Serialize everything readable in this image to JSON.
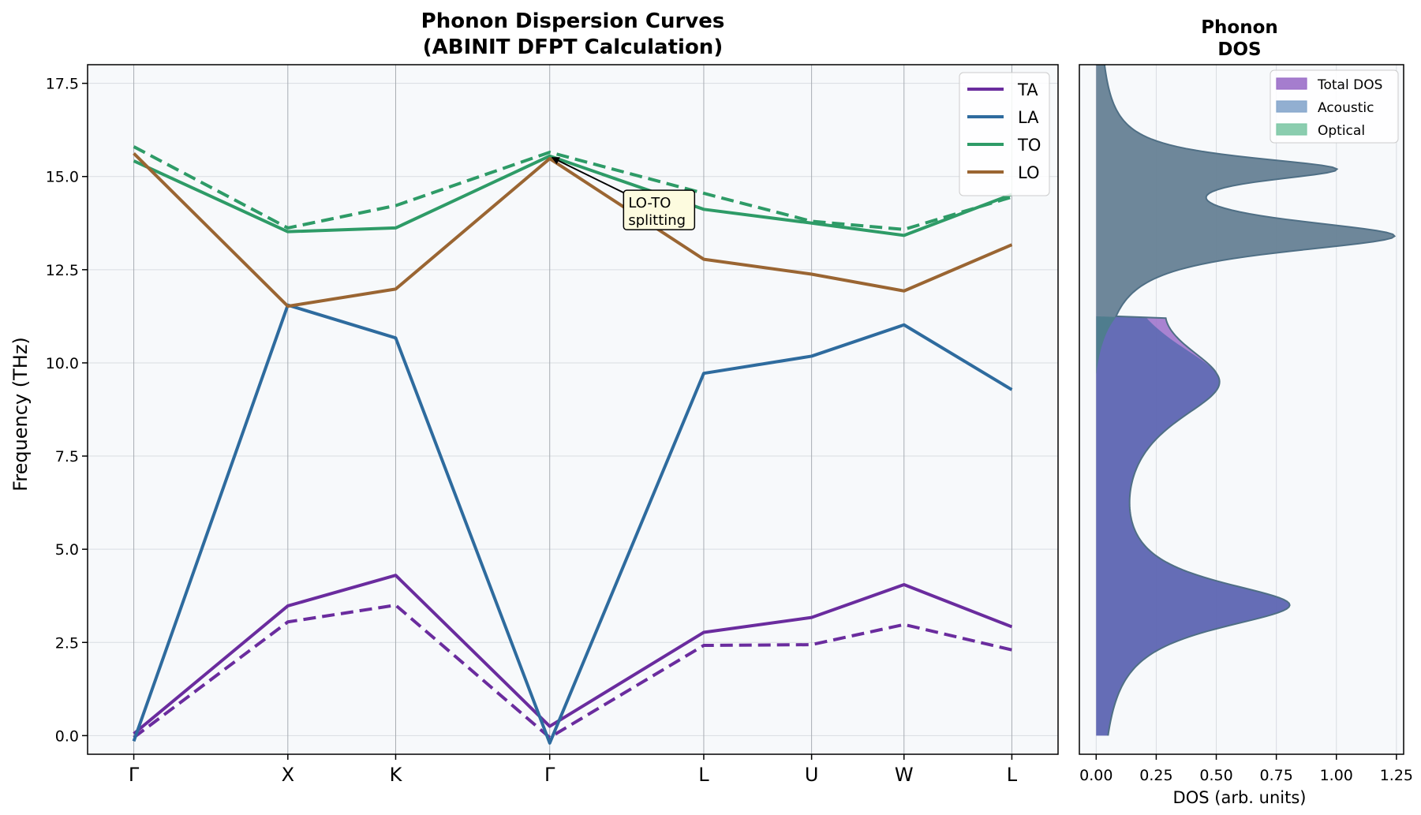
{
  "chart_data": [
    {
      "type": "line",
      "title": "Phonon Dispersion Curves",
      "subtitle": "(ABINIT DFPT Calculation)",
      "xlabel": "",
      "ylabel": "Frequency (THz)",
      "ylim": [
        -0.5,
        18.0
      ],
      "yticks": [
        "0.0",
        "2.5",
        "5.0",
        "7.5",
        "10.0",
        "12.5",
        "15.0",
        "17.5"
      ],
      "grid": true,
      "legend_position": "top-right",
      "high_symmetry_points": [
        {
          "label": "Γ",
          "k": 0.0
        },
        {
          "label": "X",
          "k": 1.0
        },
        {
          "label": "K",
          "k": 1.7
        },
        {
          "label": "Γ",
          "k": 2.7
        },
        {
          "label": "L",
          "k": 3.7
        },
        {
          "label": "U",
          "k": 4.4
        },
        {
          "label": "W",
          "k": 5.0
        },
        {
          "label": "L",
          "k": 5.7
        }
      ],
      "series": [
        {
          "name": "TA",
          "color": "#6a2c9e",
          "style": "solid",
          "values": [
            0.05,
            3.48,
            4.3,
            0.25,
            2.77,
            3.17,
            4.05,
            2.92
          ]
        },
        {
          "name": "",
          "color": "#6a2c9e",
          "style": "dashed",
          "values": [
            -0.05,
            3.05,
            3.5,
            -0.05,
            2.42,
            2.44,
            2.98,
            2.3
          ]
        },
        {
          "name": "LA",
          "color": "#2e6b9e",
          "style": "solid",
          "values": [
            -0.15,
            11.55,
            10.67,
            -0.2,
            9.72,
            10.18,
            11.02,
            9.28
          ]
        },
        {
          "name": "TO",
          "color": "#2e9b67",
          "style": "solid",
          "values": [
            15.42,
            13.52,
            13.62,
            15.55,
            14.12,
            13.75,
            13.42,
            14.52
          ]
        },
        {
          "name": "",
          "color": "#2e9b67",
          "style": "dashed",
          "values": [
            15.8,
            13.62,
            14.22,
            15.65,
            14.55,
            13.8,
            13.58,
            14.45
          ]
        },
        {
          "name": "LO",
          "color": "#9a6532",
          "style": "solid",
          "values": [
            15.62,
            11.52,
            11.98,
            15.48,
            12.78,
            12.38,
            11.93,
            13.17
          ]
        }
      ],
      "annotation": {
        "text": [
          "LO-TO",
          "splitting"
        ],
        "target": {
          "k": 2.7,
          "freq": 15.55
        },
        "text_at": {
          "k": 3.2,
          "freq": 14.25
        }
      }
    },
    {
      "type": "area",
      "title": "Phonon",
      "subtitle": "DOS",
      "xlabel": "DOS (arb. units)",
      "ylabel": "",
      "xlim": [
        -0.07,
        1.28
      ],
      "xticks": [
        "0.00",
        "0.25",
        "0.50",
        "0.75",
        "1.00",
        "1.25"
      ],
      "grid": true,
      "legend_position": "top-right",
      "series": [
        {
          "name": "Total DOS",
          "color": "#9b6fc9"
        },
        {
          "name": "Acoustic",
          "color": "#86a6cc"
        },
        {
          "name": "Optical",
          "color": "#7ec8a6"
        }
      ],
      "acoustic_peaks": [
        {
          "center": 3.5,
          "amplitude": 0.78,
          "sigma": 0.8
        },
        {
          "center": 9.5,
          "amplitude": 0.5,
          "sigma": 1.4
        }
      ],
      "optical_peaks": [
        {
          "center": 15.2,
          "amplitude": 0.9,
          "sigma": 0.4
        },
        {
          "center": 13.4,
          "amplitude": 1.2,
          "sigma": 0.55
        }
      ],
      "acoustic_max_freq": 11.2,
      "optical_min_freq": 11.2
    }
  ]
}
